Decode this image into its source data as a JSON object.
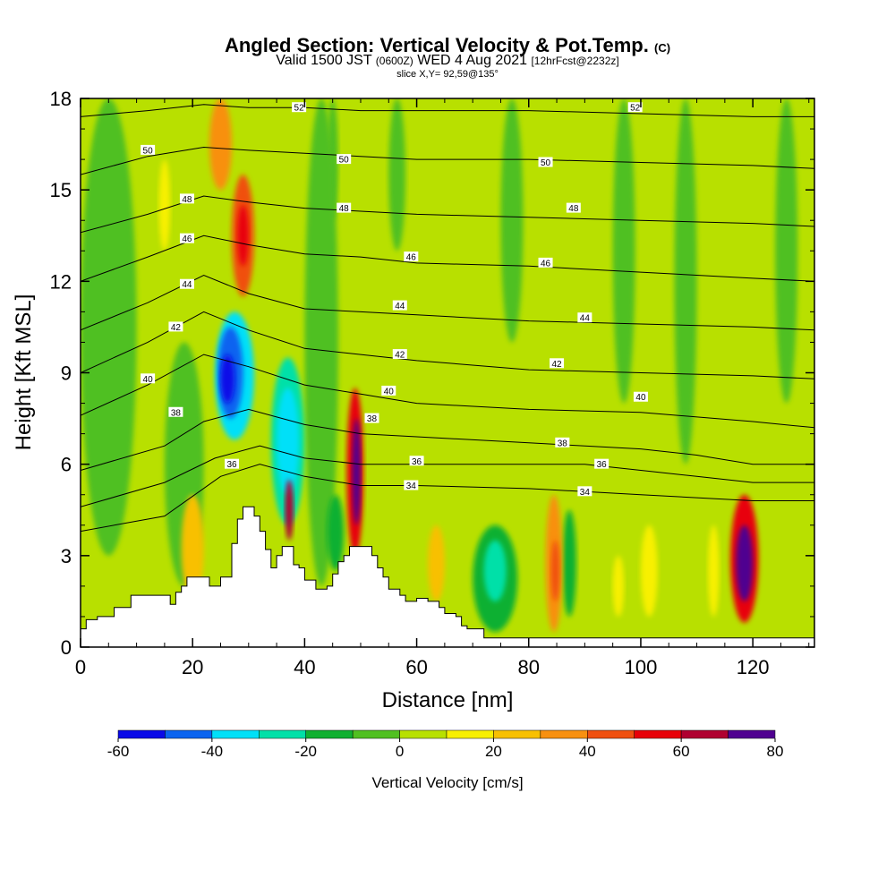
{
  "header": {
    "title": "Angled Section: Vertical Velocity & Pot.Temp.",
    "title_suffix": "(C)",
    "valid_prefix": "Valid 1500 JST",
    "valid_utc": "(0600Z)",
    "valid_date": "WED 4 Aug 2021",
    "forecast": "[12hrFcst@2232z]",
    "slice": "slice X,Y= 92,59@135°"
  },
  "chart_data": {
    "type": "heatmap",
    "xlabel": "Distance [nm]",
    "ylabel": "Height [Kft MSL]",
    "xlim": [
      0,
      131
    ],
    "ylim": [
      0,
      18
    ],
    "x_ticks": [
      0,
      20,
      40,
      60,
      80,
      100,
      120
    ],
    "y_ticks": [
      0,
      3,
      6,
      9,
      12,
      15,
      18
    ],
    "colorbar": {
      "label": "Vertical Velocity [cm/s]",
      "ticks": [
        -60,
        -40,
        -20,
        0,
        20,
        40,
        60,
        80
      ],
      "bins": [
        -60,
        -50,
        -40,
        -30,
        -20,
        -10,
        0,
        10,
        20,
        30,
        40,
        50,
        60,
        70,
        80
      ],
      "colors": [
        "#0a0ae8",
        "#0b64f0",
        "#00e0f8",
        "#00e0a8",
        "#10b030",
        "#50c020",
        "#b8e000",
        "#f8f000",
        "#f8c000",
        "#f89010",
        "#f05010",
        "#e80008",
        "#b00030",
        "#500090"
      ]
    },
    "background_color": "#b8e000",
    "terrain_profile": {
      "x": [
        0,
        1,
        3,
        6,
        9,
        13,
        16,
        17,
        18,
        19,
        20,
        22,
        23,
        24,
        25,
        27,
        28,
        29,
        30,
        31,
        32,
        33,
        34,
        35,
        36,
        37,
        38,
        39,
        40,
        41,
        42,
        43,
        44,
        45,
        46,
        47,
        48,
        49,
        50,
        51,
        52,
        53,
        54,
        55,
        56,
        57,
        58,
        60,
        62,
        64,
        65,
        67,
        68,
        69,
        70,
        72,
        131
      ],
      "height_kft": [
        0.6,
        0.9,
        1.0,
        1.3,
        1.7,
        1.7,
        1.4,
        1.8,
        2.0,
        2.3,
        2.3,
        2.3,
        2.0,
        2.0,
        2.3,
        3.4,
        4.2,
        4.6,
        4.6,
        4.3,
        3.8,
        3.2,
        2.6,
        3.0,
        3.3,
        3.3,
        2.7,
        2.6,
        2.2,
        2.2,
        1.9,
        1.9,
        2.0,
        2.4,
        2.8,
        3.0,
        3.3,
        3.3,
        3.3,
        3.3,
        3.0,
        2.6,
        2.3,
        1.9,
        1.9,
        1.7,
        1.5,
        1.6,
        1.5,
        1.3,
        1.1,
        1.0,
        0.7,
        0.6,
        0.6,
        0.3,
        0.3
      ]
    },
    "velocity_cells": [
      {
        "x": [
          24,
          31
        ],
        "y": [
          6.8,
          11.0
        ],
        "value": -35
      },
      {
        "x": [
          24.5,
          29
        ],
        "y": [
          7.5,
          10.5
        ],
        "value": -48
      },
      {
        "x": [
          25,
          27.5
        ],
        "y": [
          8.0,
          9.6
        ],
        "value": -55
      },
      {
        "x": [
          34,
          40
        ],
        "y": [
          4.0,
          9.5
        ],
        "value": -25
      },
      {
        "x": [
          35,
          39
        ],
        "y": [
          5.0,
          8.5
        ],
        "value": -35
      },
      {
        "x": [
          36.5,
          38
        ],
        "y": [
          3.5,
          5.5
        ],
        "value": 65
      },
      {
        "x": [
          23,
          27
        ],
        "y": [
          15.0,
          18.0
        ],
        "value": 30
      },
      {
        "x": [
          27,
          31
        ],
        "y": [
          11.5,
          15.5
        ],
        "value": 40
      },
      {
        "x": [
          28,
          30
        ],
        "y": [
          12.5,
          14.5
        ],
        "value": 55
      },
      {
        "x": [
          47.5,
          50.5
        ],
        "y": [
          3.0,
          8.5
        ],
        "value": 55
      },
      {
        "x": [
          48.5,
          50
        ],
        "y": [
          4.0,
          7.5
        ],
        "value": 72
      },
      {
        "x": [
          44,
          47
        ],
        "y": [
          2.5,
          5.0
        ],
        "value": -15
      },
      {
        "x": [
          70,
          78
        ],
        "y": [
          0.5,
          4.0
        ],
        "value": -15
      },
      {
        "x": [
          72,
          76
        ],
        "y": [
          1.5,
          3.5
        ],
        "value": -25
      },
      {
        "x": [
          83,
          86
        ],
        "y": [
          0.5,
          5.0
        ],
        "value": 35
      },
      {
        "x": [
          84,
          85.5
        ],
        "y": [
          1.5,
          3.5
        ],
        "value": 48
      },
      {
        "x": [
          86,
          88.5
        ],
        "y": [
          1.0,
          4.5
        ],
        "value": -20
      },
      {
        "x": [
          116,
          121
        ],
        "y": [
          0.8,
          5.0
        ],
        "value": 55
      },
      {
        "x": [
          117,
          120
        ],
        "y": [
          1.5,
          4.0
        ],
        "value": 72
      },
      {
        "x": [
          112,
          114
        ],
        "y": [
          1.0,
          4.0
        ],
        "value": 15
      },
      {
        "x": [
          100,
          103
        ],
        "y": [
          1.0,
          4.0
        ],
        "value": 15
      },
      {
        "x": [
          95,
          97
        ],
        "y": [
          1.0,
          3.0
        ],
        "value": 15
      },
      {
        "x": [
          18,
          22
        ],
        "y": [
          1.5,
          5.0
        ],
        "value": 25
      },
      {
        "x": [
          14,
          16
        ],
        "y": [
          13.0,
          16.0
        ],
        "value": 15
      },
      {
        "x": [
          62,
          65
        ],
        "y": [
          1.5,
          4.0
        ],
        "value": 25
      },
      {
        "x": [
          44,
          46
        ],
        "y": [
          14.0,
          18.0
        ],
        "value": -10
      },
      {
        "x": [
          55,
          58
        ],
        "y": [
          13.0,
          18.0
        ],
        "value": -10
      },
      {
        "x": [
          75,
          79
        ],
        "y": [
          10.0,
          18.0
        ],
        "value": -10
      },
      {
        "x": [
          95,
          99
        ],
        "y": [
          8.0,
          18.0
        ],
        "value": -10
      },
      {
        "x": [
          106,
          110
        ],
        "y": [
          6.0,
          18.0
        ],
        "value": -10
      },
      {
        "x": [
          124,
          128
        ],
        "y": [
          8.0,
          18.0
        ],
        "value": -10
      },
      {
        "x": [
          0,
          10
        ],
        "y": [
          3.0,
          18.0
        ],
        "value": -10
      },
      {
        "x": [
          15,
          22
        ],
        "y": [
          2.0,
          10.0
        ],
        "value": -10
      },
      {
        "x": [
          40,
          46
        ],
        "y": [
          2.0,
          18.0
        ],
        "value": -10
      }
    ],
    "isentropes": [
      {
        "label": "34",
        "points": [
          [
            0,
            3.8
          ],
          [
            15,
            4.3
          ],
          [
            25,
            5.6
          ],
          [
            32,
            6.0
          ],
          [
            40,
            5.6
          ],
          [
            50,
            5.3
          ],
          [
            60,
            5.3
          ],
          [
            80,
            5.2
          ],
          [
            90,
            5.1
          ],
          [
            100,
            5.0
          ],
          [
            110,
            4.9
          ],
          [
            120,
            4.8
          ],
          [
            131,
            4.8
          ]
        ],
        "labels_at": [
          [
            59,
            5.3
          ],
          [
            90,
            5.1
          ]
        ]
      },
      {
        "label": "36",
        "points": [
          [
            0,
            4.6
          ],
          [
            15,
            5.4
          ],
          [
            24,
            6.2
          ],
          [
            32,
            6.6
          ],
          [
            40,
            6.2
          ],
          [
            50,
            6.0
          ],
          [
            60,
            6.0
          ],
          [
            80,
            6.0
          ],
          [
            90,
            6.0
          ],
          [
            100,
            5.8
          ],
          [
            110,
            5.6
          ],
          [
            120,
            5.4
          ],
          [
            131,
            5.4
          ]
        ],
        "labels_at": [
          [
            27,
            6.0
          ],
          [
            60,
            6.1
          ],
          [
            93,
            6.0
          ]
        ]
      },
      {
        "label": "38",
        "points": [
          [
            0,
            5.8
          ],
          [
            15,
            6.6
          ],
          [
            22,
            7.4
          ],
          [
            30,
            7.8
          ],
          [
            40,
            7.3
          ],
          [
            50,
            7.0
          ],
          [
            60,
            6.9
          ],
          [
            80,
            6.7
          ],
          [
            100,
            6.5
          ],
          [
            110,
            6.3
          ],
          [
            120,
            6.0
          ],
          [
            131,
            6.0
          ]
        ],
        "labels_at": [
          [
            17,
            7.7
          ],
          [
            52,
            7.5
          ],
          [
            86,
            6.7
          ]
        ]
      },
      {
        "label": "40",
        "points": [
          [
            0,
            7.6
          ],
          [
            12,
            8.6
          ],
          [
            22,
            9.6
          ],
          [
            30,
            9.2
          ],
          [
            40,
            8.6
          ],
          [
            50,
            8.3
          ],
          [
            60,
            8.0
          ],
          [
            80,
            7.8
          ],
          [
            100,
            7.7
          ],
          [
            120,
            7.4
          ],
          [
            131,
            7.2
          ]
        ],
        "labels_at": [
          [
            12,
            8.8
          ],
          [
            55,
            8.4
          ],
          [
            100,
            8.2
          ]
        ]
      },
      {
        "label": "42",
        "points": [
          [
            0,
            9.0
          ],
          [
            12,
            10.0
          ],
          [
            22,
            11.0
          ],
          [
            30,
            10.4
          ],
          [
            40,
            9.8
          ],
          [
            50,
            9.6
          ],
          [
            60,
            9.4
          ],
          [
            80,
            9.1
          ],
          [
            100,
            9.0
          ],
          [
            120,
            8.9
          ],
          [
            131,
            8.8
          ]
        ],
        "labels_at": [
          [
            17,
            10.5
          ],
          [
            57,
            9.6
          ],
          [
            85,
            9.3
          ]
        ]
      },
      {
        "label": "44",
        "points": [
          [
            0,
            10.4
          ],
          [
            12,
            11.3
          ],
          [
            22,
            12.2
          ],
          [
            30,
            11.6
          ],
          [
            40,
            11.1
          ],
          [
            50,
            11.0
          ],
          [
            60,
            10.9
          ],
          [
            80,
            10.7
          ],
          [
            100,
            10.6
          ],
          [
            120,
            10.5
          ],
          [
            131,
            10.4
          ]
        ],
        "labels_at": [
          [
            19,
            11.9
          ],
          [
            57,
            11.2
          ],
          [
            90,
            10.8
          ]
        ]
      },
      {
        "label": "46",
        "points": [
          [
            0,
            12.0
          ],
          [
            12,
            12.8
          ],
          [
            22,
            13.5
          ],
          [
            30,
            13.2
          ],
          [
            40,
            12.9
          ],
          [
            50,
            12.8
          ],
          [
            60,
            12.6
          ],
          [
            80,
            12.5
          ],
          [
            100,
            12.3
          ],
          [
            120,
            12.1
          ],
          [
            131,
            12.0
          ]
        ],
        "labels_at": [
          [
            19,
            13.4
          ],
          [
            59,
            12.8
          ],
          [
            83,
            12.6
          ]
        ]
      },
      {
        "label": "48",
        "points": [
          [
            0,
            13.6
          ],
          [
            12,
            14.2
          ],
          [
            22,
            14.8
          ],
          [
            30,
            14.6
          ],
          [
            40,
            14.4
          ],
          [
            50,
            14.3
          ],
          [
            60,
            14.2
          ],
          [
            80,
            14.1
          ],
          [
            100,
            14.0
          ],
          [
            120,
            13.9
          ],
          [
            131,
            13.8
          ]
        ],
        "labels_at": [
          [
            19,
            14.7
          ],
          [
            47,
            14.4
          ],
          [
            88,
            14.4
          ]
        ]
      },
      {
        "label": "50",
        "points": [
          [
            0,
            15.5
          ],
          [
            12,
            16.1
          ],
          [
            22,
            16.4
          ],
          [
            30,
            16.3
          ],
          [
            40,
            16.2
          ],
          [
            50,
            16.1
          ],
          [
            60,
            16.0
          ],
          [
            80,
            16.0
          ],
          [
            100,
            15.9
          ],
          [
            120,
            15.8
          ],
          [
            131,
            15.7
          ]
        ],
        "labels_at": [
          [
            12,
            16.3
          ],
          [
            47,
            16.0
          ],
          [
            83,
            15.9
          ]
        ]
      },
      {
        "label": "52",
        "points": [
          [
            0,
            17.4
          ],
          [
            12,
            17.6
          ],
          [
            22,
            17.8
          ],
          [
            30,
            17.7
          ],
          [
            40,
            17.7
          ],
          [
            50,
            17.6
          ],
          [
            60,
            17.6
          ],
          [
            80,
            17.6
          ],
          [
            100,
            17.5
          ],
          [
            120,
            17.4
          ],
          [
            131,
            17.4
          ]
        ],
        "labels_at": [
          [
            39,
            17.7
          ],
          [
            99,
            17.7
          ]
        ]
      }
    ]
  }
}
